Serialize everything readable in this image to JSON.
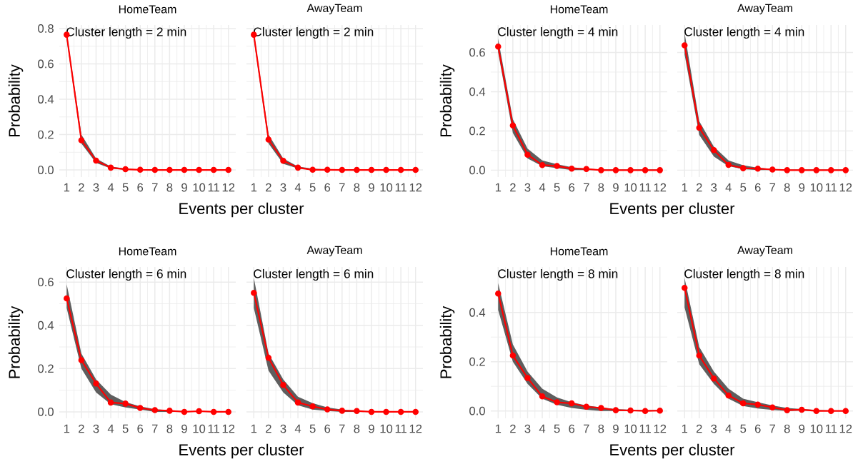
{
  "chart_data": [
    {
      "type": "line",
      "title": "HomeTeam",
      "annotations": [
        "Cluster length = 2 min"
      ],
      "xlabel": "Events per cluster",
      "ylabel": "Probability",
      "categories": [
        "1",
        "2",
        "3",
        "4",
        "5",
        "6",
        "7",
        "8",
        "9",
        "10",
        "11",
        "12"
      ],
      "series": [
        {
          "color": "#ff0000",
          "values": [
            0.765,
            0.168,
            0.053,
            0.013,
            0.004,
            0.001,
            0,
            0,
            0,
            0,
            0,
            0
          ],
          "lower": [
            0.74,
            0.15,
            0.04,
            0.008,
            0.001,
            0,
            0,
            0,
            0,
            0,
            0,
            0
          ],
          "upper": [
            0.78,
            0.2,
            0.065,
            0.02,
            0.007,
            0.002,
            0.002,
            0.002,
            0.002,
            0.002,
            0.002,
            0.002
          ]
        }
      ],
      "ylim": [
        -0.04,
        0.82
      ],
      "yticks": [
        {
          "value": 0,
          "label": "0.0"
        },
        {
          "value": 0.2,
          "label": "0.2"
        },
        {
          "value": 0.4,
          "label": "0.4"
        },
        {
          "value": 0.6,
          "label": "0.6"
        },
        {
          "value": 0.8,
          "label": "0.8"
        }
      ],
      "grid": true,
      "marker": "circle"
    },
    {
      "type": "line",
      "title": "AwayTeam",
      "annotations": [
        "Cluster length = 2 min"
      ],
      "categories": [
        "1",
        "2",
        "3",
        "4",
        "5",
        "6",
        "7",
        "8",
        "9",
        "10",
        "11",
        "12"
      ],
      "series": [
        {
          "color": "#ff0000",
          "values": [
            0.765,
            0.172,
            0.052,
            0.013,
            0.001,
            0.001,
            0,
            0,
            0,
            0,
            0,
            0
          ],
          "lower": [
            0.74,
            0.15,
            0.035,
            0.008,
            0,
            0,
            0,
            0,
            0,
            0,
            0,
            0
          ],
          "upper": [
            0.78,
            0.2,
            0.065,
            0.02,
            0.007,
            0.002,
            0.002,
            0.002,
            0.002,
            0.002,
            0.002,
            0.002
          ]
        }
      ],
      "ylim": [
        -0.04,
        0.82
      ],
      "yticks": [
        0,
        0.2,
        0.4,
        0.6,
        0.8
      ],
      "grid": true,
      "marker": "circle",
      "tick_labels": "x"
    },
    {
      "type": "line",
      "title": "HomeTeam",
      "annotations": [
        "Cluster length = 4 min"
      ],
      "xlabel": "Events per cluster",
      "ylabel": "Probability",
      "categories": [
        "1",
        "2",
        "3",
        "4",
        "5",
        "6",
        "7",
        "8",
        "9",
        "10",
        "11",
        "12"
      ],
      "series": [
        {
          "color": "#ff0000",
          "values": [
            0.63,
            0.228,
            0.079,
            0.026,
            0.021,
            0.008,
            0.006,
            0,
            0,
            0,
            0,
            0
          ],
          "lower": [
            0.6,
            0.19,
            0.06,
            0.02,
            0.01,
            0,
            0,
            0,
            0,
            0,
            0,
            0
          ],
          "upper": [
            0.67,
            0.26,
            0.11,
            0.05,
            0.03,
            0.015,
            0.008,
            0.003,
            0.003,
            0.003,
            0.003,
            0.003
          ]
        }
      ],
      "ylim": [
        -0.035,
        0.74
      ],
      "yticks": [
        {
          "value": 0,
          "label": "0.0"
        },
        {
          "value": 0.2,
          "label": "0.2"
        },
        {
          "value": 0.4,
          "label": "0.4"
        },
        {
          "value": 0.6,
          "label": "0.6"
        }
      ],
      "grid": true,
      "marker": "circle"
    },
    {
      "type": "line",
      "title": "AwayTeam",
      "annotations": [
        "Cluster length = 4 min"
      ],
      "categories": [
        "1",
        "2",
        "3",
        "4",
        "5",
        "6",
        "7",
        "8",
        "9",
        "10",
        "11",
        "12"
      ],
      "series": [
        {
          "color": "#ff0000",
          "values": [
            0.636,
            0.216,
            0.102,
            0.027,
            0.01,
            0.008,
            0.003,
            0,
            0,
            0,
            0,
            0
          ],
          "lower": [
            0.59,
            0.18,
            0.07,
            0.02,
            0.005,
            0,
            0,
            0,
            0,
            0,
            0,
            0
          ],
          "upper": [
            0.7,
            0.25,
            0.12,
            0.05,
            0.025,
            0.012,
            0.006,
            0.003,
            0.003,
            0.003,
            0.003,
            0.003
          ]
        }
      ],
      "ylim": [
        -0.035,
        0.74
      ],
      "yticks": [
        0,
        0.2,
        0.4,
        0.6
      ],
      "grid": true,
      "marker": "circle",
      "tick_labels": "x"
    },
    {
      "type": "line",
      "title": "HomeTeam",
      "annotations": [
        "Cluster length = 6 min"
      ],
      "xlabel": "Events per cluster",
      "ylabel": "Probability",
      "categories": [
        "1",
        "2",
        "3",
        "4",
        "5",
        "6",
        "7",
        "8",
        "9",
        "10",
        "11",
        "12"
      ],
      "series": [
        {
          "color": "#ff0000",
          "values": [
            0.525,
            0.239,
            0.131,
            0.043,
            0.038,
            0.018,
            0.008,
            0.005,
            0,
            0.003,
            0,
            0
          ],
          "lower": [
            0.48,
            0.2,
            0.09,
            0.035,
            0.02,
            0.01,
            0,
            0,
            0,
            0,
            0,
            0
          ],
          "upper": [
            0.59,
            0.27,
            0.15,
            0.08,
            0.045,
            0.025,
            0.012,
            0.007,
            0.003,
            0.003,
            0.003,
            0.003
          ]
        }
      ],
      "ylim": [
        -0.03,
        0.67
      ],
      "yticks": [
        {
          "value": 0,
          "label": "0.0"
        },
        {
          "value": 0.2,
          "label": "0.2"
        },
        {
          "value": 0.4,
          "label": "0.4"
        },
        {
          "value": 0.6,
          "label": "0.6"
        }
      ],
      "grid": true,
      "marker": "circle"
    },
    {
      "type": "line",
      "title": "AwayTeam",
      "annotations": [
        "Cluster length = 6 min"
      ],
      "categories": [
        "1",
        "2",
        "3",
        "4",
        "5",
        "6",
        "7",
        "8",
        "9",
        "10",
        "11",
        "12"
      ],
      "series": [
        {
          "color": "#ff0000",
          "values": [
            0.55,
            0.25,
            0.124,
            0.043,
            0.025,
            0.011,
            0.005,
            0.004,
            0,
            0,
            0,
            0
          ],
          "lower": [
            0.48,
            0.19,
            0.09,
            0.03,
            0.01,
            0.004,
            0,
            0,
            0,
            0,
            0,
            0
          ],
          "upper": [
            0.62,
            0.27,
            0.15,
            0.07,
            0.04,
            0.02,
            0.01,
            0.006,
            0.002,
            0.002,
            0.002,
            0.002
          ]
        }
      ],
      "ylim": [
        -0.03,
        0.67
      ],
      "yticks": [
        0,
        0.2,
        0.4,
        0.6
      ],
      "grid": true,
      "marker": "circle",
      "tick_labels": "x"
    },
    {
      "type": "line",
      "title": "HomeTeam",
      "annotations": [
        "Cluster length = 8 min"
      ],
      "xlabel": "Events per cluster",
      "ylabel": "Probability",
      "categories": [
        "1",
        "2",
        "3",
        "4",
        "5",
        "6",
        "7",
        "8",
        "9",
        "10",
        "11",
        "12"
      ],
      "series": [
        {
          "color": "#ff0000",
          "values": [
            0.477,
            0.225,
            0.134,
            0.059,
            0.035,
            0.031,
            0.017,
            0.012,
            0.003,
            0.002,
            0,
            0.001
          ],
          "lower": [
            0.41,
            0.2,
            0.11,
            0.05,
            0.025,
            0.012,
            0.005,
            0,
            0,
            0,
            0,
            0
          ],
          "upper": [
            0.52,
            0.27,
            0.16,
            0.09,
            0.055,
            0.035,
            0.022,
            0.014,
            0.008,
            0.005,
            0.003,
            0.003
          ]
        }
      ],
      "ylim": [
        -0.03,
        0.585
      ],
      "yticks": [
        {
          "value": 0,
          "label": "0.0"
        },
        {
          "value": 0.2,
          "label": "0.2"
        },
        {
          "value": 0.4,
          "label": "0.4"
        }
      ],
      "grid": true,
      "marker": "circle"
    },
    {
      "type": "line",
      "title": "AwayTeam",
      "annotations": [
        "Cluster length = 8 min"
      ],
      "categories": [
        "1",
        "2",
        "3",
        "4",
        "5",
        "6",
        "7",
        "8",
        "9",
        "10",
        "11",
        "12"
      ],
      "series": [
        {
          "color": "#ff0000",
          "values": [
            0.5,
            0.225,
            0.132,
            0.063,
            0.031,
            0.026,
            0.014,
            0.003,
            0.005,
            0,
            0,
            0
          ],
          "lower": [
            0.42,
            0.19,
            0.11,
            0.05,
            0.02,
            0.01,
            0.004,
            0,
            0.001,
            0,
            0,
            0
          ],
          "upper": [
            0.54,
            0.26,
            0.16,
            0.09,
            0.05,
            0.035,
            0.022,
            0.012,
            0.008,
            0.004,
            0.002,
            0.002
          ]
        }
      ],
      "ylim": [
        -0.03,
        0.585
      ],
      "yticks": [
        0,
        0.2,
        0.4
      ],
      "grid": true,
      "marker": "circle",
      "tick_labels": "x"
    }
  ]
}
